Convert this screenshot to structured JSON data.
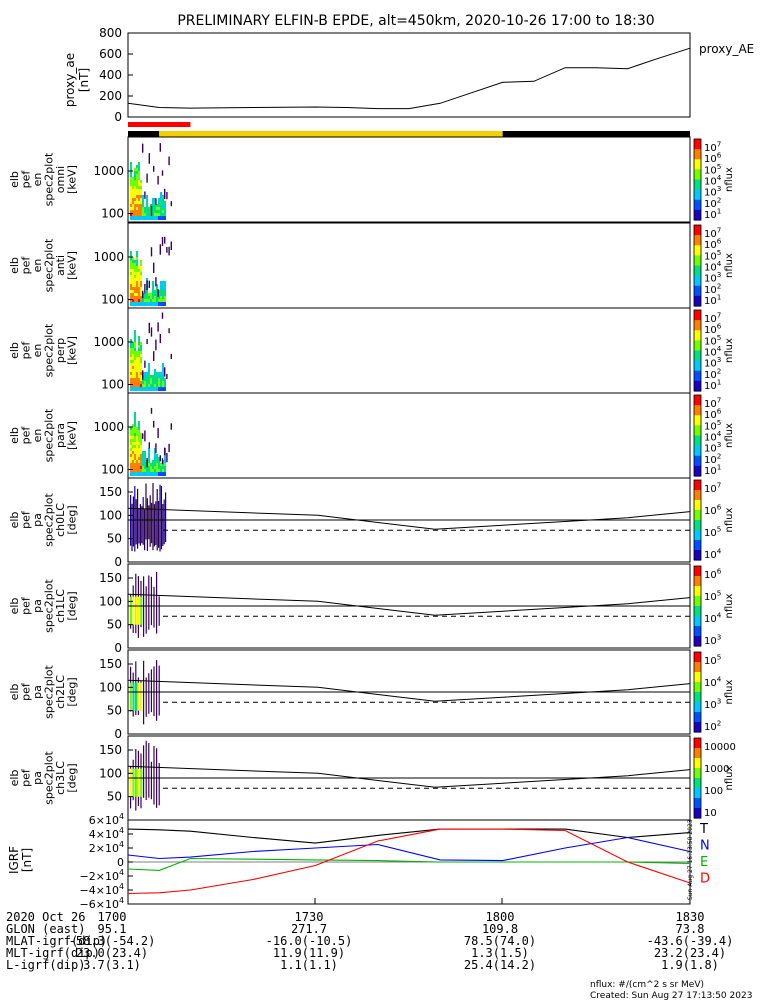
{
  "title": "PRELIMINARY ELFIN-B EPDE, alt=450km, 2020-10-26 17:00 to 18:30",
  "chart_data": [
    {
      "type": "line",
      "panel": "proxy_ae",
      "ylabel": [
        "proxy_ae",
        "[nT]"
      ],
      "legend": "proxy_AE",
      "ylim": [
        0,
        800
      ],
      "yticks": [
        "800",
        "600",
        "400",
        "200",
        "0"
      ],
      "x_hhmm": [
        "17:00",
        "17:05",
        "17:10",
        "17:20",
        "17:30",
        "17:35",
        "17:40",
        "17:45",
        "17:50",
        "17:55",
        "18:00",
        "18:05",
        "18:10",
        "18:15",
        "18:20",
        "18:25",
        "18:30"
      ],
      "values": [
        130,
        90,
        85,
        90,
        95,
        90,
        80,
        80,
        130,
        230,
        330,
        340,
        470,
        470,
        460,
        560,
        655
      ]
    },
    {
      "type": "bar",
      "panel": "status-bars",
      "rows": [
        {
          "segments": [
            {
              "from": "17:00",
              "to": "17:10",
              "color": "#ff0000"
            }
          ]
        },
        {
          "segments": [
            {
              "from": "17:00",
              "to": "17:05",
              "color": "#000000"
            },
            {
              "from": "17:05",
              "to": "18:00",
              "color": "#f5d000"
            },
            {
              "from": "18:00",
              "to": "18:30",
              "color": "#000000"
            }
          ]
        }
      ]
    },
    {
      "type": "heatmap",
      "panel": "spectrogram",
      "ylabel": [
        "elb",
        "pef",
        "en",
        "spec2plot",
        "omni",
        "[keV]"
      ],
      "yticks": [
        "1000",
        "100"
      ],
      "colorbar": {
        "label": "nflux",
        "ticks": [
          "10^7",
          "10^6",
          "10^5",
          "10^4",
          "10^3",
          "10^2",
          "10^1"
        ]
      }
    },
    {
      "type": "heatmap",
      "panel": "spectrogram",
      "ylabel": [
        "elb",
        "pef",
        "en",
        "spec2plot",
        "anti",
        "[keV]"
      ],
      "yticks": [
        "1000",
        "100"
      ],
      "colorbar": {
        "label": "nflux",
        "ticks": [
          "10^7",
          "10^6",
          "10^5",
          "10^4",
          "10^3",
          "10^2",
          "10^1"
        ]
      }
    },
    {
      "type": "heatmap",
      "panel": "spectrogram",
      "ylabel": [
        "elb",
        "pef",
        "en",
        "spec2plot",
        "perp",
        "[keV]"
      ],
      "yticks": [
        "1000",
        "100"
      ],
      "colorbar": {
        "label": "nflux",
        "ticks": [
          "10^7",
          "10^6",
          "10^5",
          "10^4",
          "10^3",
          "10^2",
          "10^1"
        ]
      }
    },
    {
      "type": "heatmap",
      "panel": "spectrogram",
      "ylabel": [
        "elb",
        "pef",
        "en",
        "spec2plot",
        "para",
        "[keV]"
      ],
      "yticks": [
        "1000",
        "100"
      ],
      "colorbar": {
        "label": "nflux",
        "ticks": [
          "10^7",
          "10^6",
          "10^5",
          "10^4",
          "10^3",
          "10^2",
          "10^1"
        ]
      }
    },
    {
      "type": "heatmap",
      "panel": "pitch-angle",
      "ylabel": [
        "elb",
        "pef",
        "pa",
        "spec2plot",
        "ch0LC",
        "[deg]"
      ],
      "ylim": [
        0,
        180
      ],
      "yticks": [
        "150",
        "100",
        "50",
        "0"
      ],
      "colorbar": {
        "label": "nflux",
        "ticks": [
          "10^7",
          "10^6",
          "10^5",
          "10^4"
        ]
      }
    },
    {
      "type": "heatmap",
      "panel": "pitch-angle",
      "ylabel": [
        "elb",
        "pef",
        "pa",
        "spec2plot",
        "ch1LC",
        "[deg]"
      ],
      "ylim": [
        0,
        180
      ],
      "yticks": [
        "150",
        "100",
        "50",
        "0"
      ],
      "colorbar": {
        "label": "nflux",
        "ticks": [
          "10^6",
          "10^5",
          "10^4",
          "10^3"
        ]
      }
    },
    {
      "type": "heatmap",
      "panel": "pitch-angle",
      "ylabel": [
        "elb",
        "pef",
        "pa",
        "spec2plot",
        "ch2LC",
        "[deg]"
      ],
      "ylim": [
        0,
        180
      ],
      "yticks": [
        "150",
        "100",
        "50",
        "0"
      ],
      "colorbar": {
        "label": "nflux",
        "ticks": [
          "10^5",
          "10^4",
          "10^3",
          "10^2"
        ]
      }
    },
    {
      "type": "heatmap",
      "panel": "pitch-angle",
      "ylabel": [
        "elb",
        "pef",
        "pa",
        "spec2plot",
        "ch3LC",
        "[deg]"
      ],
      "ylim": [
        0,
        180
      ],
      "yticks": [
        "150",
        "100",
        "50"
      ],
      "colorbar": {
        "label": "nflux",
        "ticks": [
          "10000",
          "1000",
          "100",
          "10"
        ]
      }
    },
    {
      "type": "line",
      "panel": "igrf",
      "ylabel": [
        "IGRF",
        "[nT]"
      ],
      "ylim": [
        -60000,
        60000
      ],
      "yticks": [
        "6×10^4",
        "4×10^4",
        "2×10^4",
        "0",
        "−2×10^4",
        "−4×10^4",
        "−6×10^4"
      ],
      "x_hhmm": [
        "17:00",
        "17:05",
        "17:10",
        "17:20",
        "17:30",
        "17:40",
        "17:50",
        "18:00",
        "18:10",
        "18:20",
        "18:30"
      ],
      "series": [
        {
          "name": "T",
          "color": "#000000",
          "values": [
            47000,
            46000,
            44000,
            35000,
            27000,
            38000,
            47000,
            47000,
            47000,
            35000,
            42000
          ]
        },
        {
          "name": "N",
          "color": "#0000ff",
          "values": [
            10000,
            5000,
            7000,
            15000,
            20000,
            25000,
            3000,
            2000,
            20000,
            35000,
            15000
          ]
        },
        {
          "name": "E",
          "color": "#00b400",
          "values": [
            -10000,
            -12000,
            5000,
            4000,
            3000,
            2000,
            0,
            0,
            0,
            0,
            -2000
          ]
        },
        {
          "name": "D",
          "color": "#ff0000",
          "values": [
            -45000,
            -44000,
            -40000,
            -25000,
            -5000,
            30000,
            47000,
            47000,
            45000,
            0,
            -30000
          ]
        }
      ]
    }
  ],
  "xaxis": {
    "ticks": [
      "1700",
      "1730",
      "1800",
      "1830"
    ],
    "rows": [
      {
        "label": "2020 Oct 26",
        "values": [
          "1700",
          "1730",
          "1800",
          "1830"
        ]
      },
      {
        "label": "GLON (east)",
        "values": [
          "95.1",
          "271.7",
          "109.8",
          "73.8"
        ]
      },
      {
        "label": "MLAT-igrf(dip)",
        "values": [
          "-58.3(-54.2)",
          "-16.0(-10.5)",
          "78.5(74.0)",
          "-43.6(-39.4)"
        ]
      },
      {
        "label": "MLT-igrf(dip)",
        "values": [
          "23.0(23.4)",
          "11.9(11.9)",
          "1.3(1.5)",
          "23.2(23.4)"
        ]
      },
      {
        "label": "L-igrf(dip)",
        "values": [
          "3.7(3.1)",
          "1.1(1.1)",
          "25.4(14.2)",
          "1.9(1.8)"
        ]
      }
    ]
  },
  "footer": {
    "units": "nflux: #/(cm^2 s sr MeV)",
    "created": "Created: Sun Aug 27 17:13:50 2023",
    "stamp": "Sun Aug 27 16:13:58 2023"
  }
}
